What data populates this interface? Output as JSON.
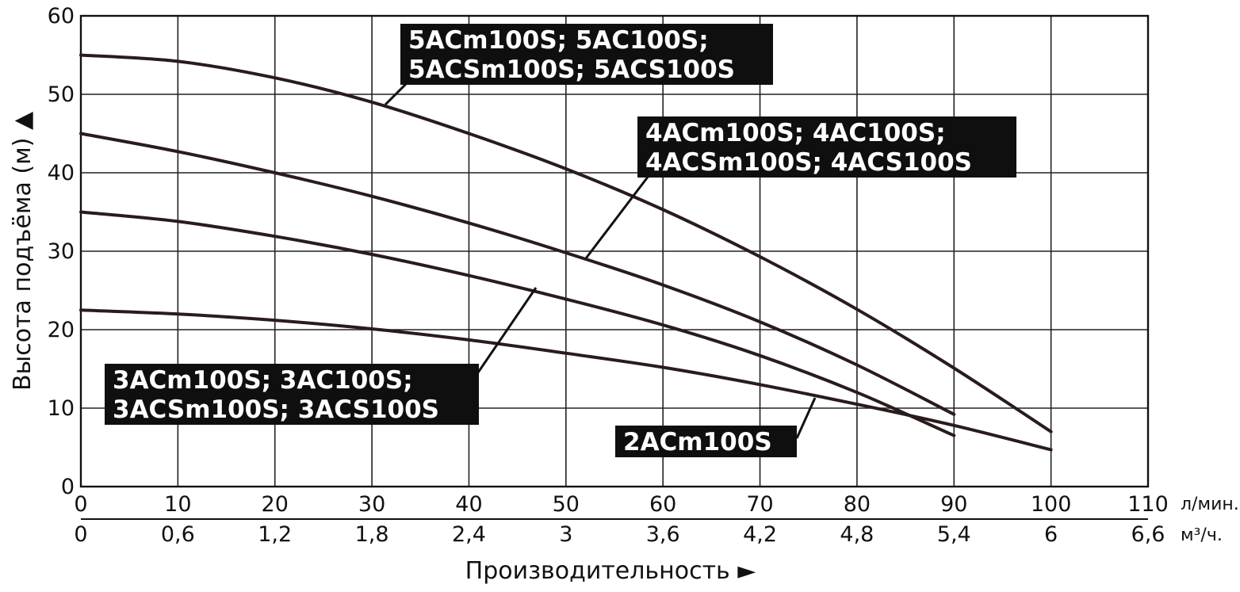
{
  "chart_data": {
    "type": "line",
    "ylabel": "Высота подъёма (м) ▲",
    "xlabel": "Производительность ►",
    "xlim": [
      0,
      110
    ],
    "ylim": [
      0,
      60
    ],
    "grid": true,
    "x_ticks": [
      "0",
      "10",
      "20",
      "30",
      "40",
      "50",
      "60",
      "70",
      "80",
      "90",
      "100",
      "110"
    ],
    "x_unit": "л/мин.",
    "x2_ticks": [
      "0",
      "0,6",
      "1,2",
      "1,8",
      "2,4",
      "3",
      "3,6",
      "4,2",
      "4,8",
      "5,4",
      "6",
      "6,6"
    ],
    "x2_unit": "м³/ч.",
    "y_ticks": [
      "0",
      "10",
      "20",
      "30",
      "40",
      "50",
      "60"
    ],
    "series": [
      {
        "name": "5ACm100S; 5AC100S; 5ACSm100S; 5ACS100S",
        "label_lines": [
          "5ACm100S; 5AC100S;",
          "5ACSm100S; 5ACS100S"
        ],
        "x": [
          0,
          10,
          20,
          30,
          40,
          50,
          60,
          70,
          80,
          90,
          100
        ],
        "y": [
          55,
          54.2,
          52.1,
          49,
          45,
          40.5,
          35.3,
          29.3,
          22.6,
          15.1,
          7
        ]
      },
      {
        "name": "4ACm100S; 4AC100S; 4ACSm100S; 4ACS100S",
        "label_lines": [
          "4ACm100S; 4AC100S;",
          "4ACSm100S; 4ACS100S"
        ],
        "x": [
          0,
          10,
          20,
          30,
          40,
          50,
          60,
          70,
          80,
          90
        ],
        "y": [
          45,
          42.7,
          40,
          37,
          33.6,
          29.8,
          25.7,
          21,
          15.5,
          9.2
        ]
      },
      {
        "name": "3ACm100S; 3AC100S; 3ACSm100S; 3ACS100S",
        "label_lines": [
          "3ACm100S; 3AC100S;",
          "3ACSm100S; 3ACS100S"
        ],
        "x": [
          0,
          10,
          20,
          30,
          40,
          50,
          60,
          70,
          80,
          90
        ],
        "y": [
          35,
          33.8,
          31.9,
          29.6,
          26.9,
          23.9,
          20.6,
          16.7,
          12,
          6.5
        ]
      },
      {
        "name": "2ACm100S",
        "label_lines": [
          "2ACm100S"
        ],
        "x": [
          0,
          10,
          20,
          30,
          40,
          50,
          60,
          70,
          80,
          90,
          100
        ],
        "y": [
          22.5,
          22,
          21.2,
          20.1,
          18.7,
          17,
          15.2,
          13,
          10.5,
          7.8,
          4.7
        ]
      }
    ]
  }
}
